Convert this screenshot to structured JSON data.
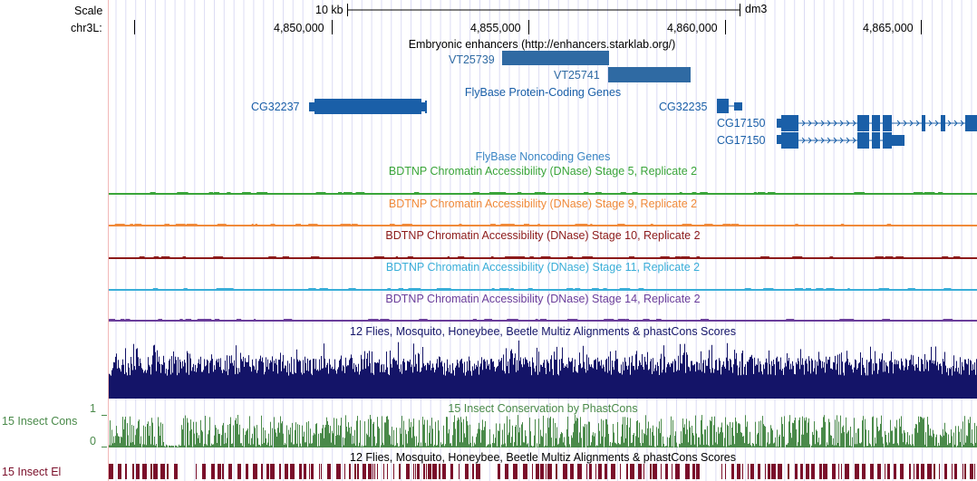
{
  "ruler": {
    "scale_label": "Scale",
    "scale_value": "10 kb",
    "assembly": "dm3",
    "chrom_label": "chr3L:",
    "ticks": [
      "4,850,000",
      "4,855,000",
      "4,860,000",
      "4,865,000"
    ]
  },
  "tracks": {
    "enhancers": {
      "title": "Embryonic enhancers (http://enhancers.starklab.org/)",
      "items": [
        "VT25739",
        "VT25741"
      ],
      "color": "#2f6aa3"
    },
    "protein_genes": {
      "title": "FlyBase Protein-Coding Genes",
      "items": [
        "CG32237",
        "CG32235",
        "CG17150",
        "CG17150"
      ],
      "color": "#1a5fa8"
    },
    "noncoding": {
      "title": "FlyBase Noncoding Genes",
      "color": "#3a85c4"
    },
    "dnase": [
      {
        "title": "BDTNP Chromatin Accessibility (DNase) Stage 5, Replicate 2",
        "color": "#3aa53a"
      },
      {
        "title": "BDTNP Chromatin Accessibility (DNase) Stage 9, Replicate 2",
        "color": "#f08a3a"
      },
      {
        "title": "BDTNP Chromatin Accessibility (DNase) Stage 10, Replicate 2",
        "color": "#8c1a1a"
      },
      {
        "title": "BDTNP Chromatin Accessibility (DNase) Stage 11, Replicate 2",
        "color": "#3aaed8"
      },
      {
        "title": "BDTNP Chromatin Accessibility (DNase) Stage 14, Replicate 2",
        "color": "#6a3d9a"
      }
    ],
    "multiz_top": {
      "title": "12 Flies, Mosquito, Honeybee, Beetle Multiz Alignments & phastCons Scores",
      "color": "#141468"
    },
    "phastcons": {
      "title": "15 Insect Conservation by PhastCons",
      "side_label": "15 Insect Cons",
      "axis_max": "1",
      "axis_min": "0",
      "color": "#4a8a4a"
    },
    "multiz_bottom": {
      "title": "12 Flies, Mosquito, Honeybee, Beetle Multiz Alignments & phastCons Scores",
      "side_label": "15 Insect El",
      "color": "#7a0f2a"
    }
  }
}
